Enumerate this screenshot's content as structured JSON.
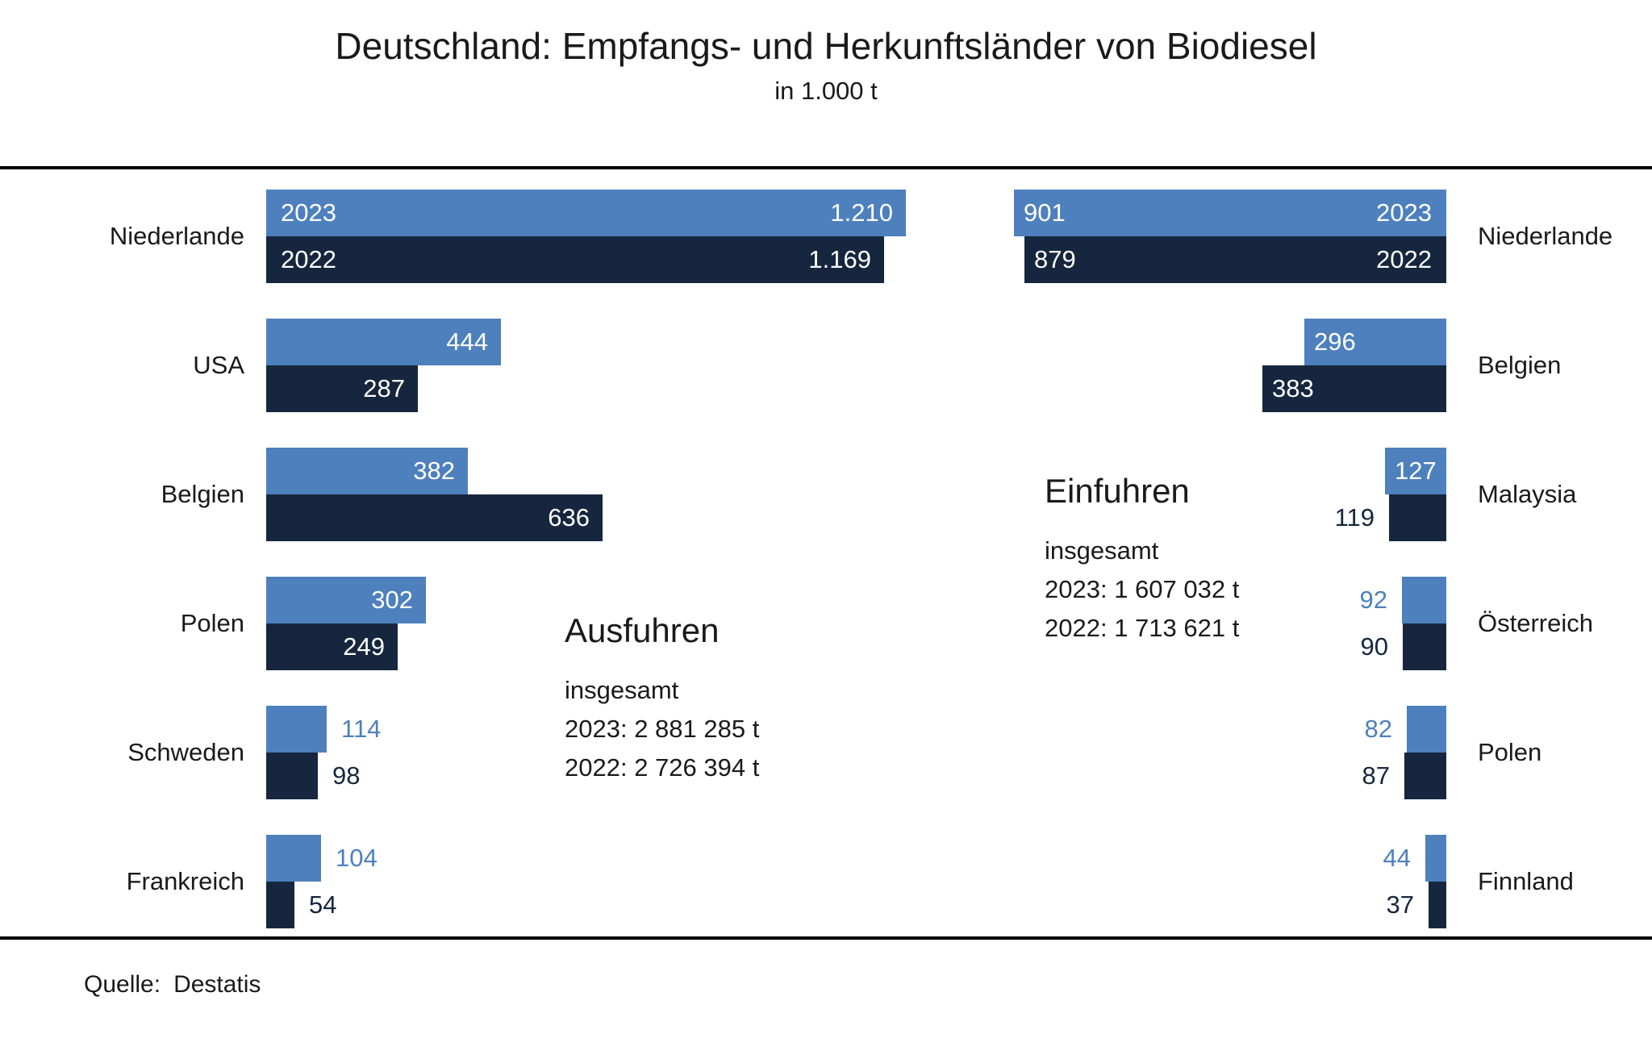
{
  "title": "Deutschland: Empfangs- und Herkunftsländer von Biodiesel",
  "subtitle": "in 1.000 t",
  "source": {
    "label": "Quelle:",
    "value": "Destatis"
  },
  "colors": {
    "bar_2023": "#4d80bd",
    "bar_2022": "#16263e",
    "text": "#1a1a1a",
    "divider": "#000000"
  },
  "chart_data": [
    {
      "type": "bar",
      "orientation": "horizontal, bars grow right",
      "name": "Ausfuhren",
      "unit": "1.000 t",
      "series_labels": [
        "2023",
        "2022"
      ],
      "summary": {
        "heading": "Ausfuhren",
        "line1": "insgesamt",
        "line2": "2023: 2 881 285 t",
        "line3": "2022: 2 726 394 t"
      },
      "rows": [
        {
          "category": "Niederlande",
          "y2023": 1210,
          "y2022": 1169,
          "display_2023": "1.210",
          "display_2022": "1.169"
        },
        {
          "category": "USA",
          "y2023": 444,
          "y2022": 287,
          "display_2023": "444",
          "display_2022": "287"
        },
        {
          "category": "Belgien",
          "y2023": 382,
          "y2022": 636,
          "display_2023": "382",
          "display_2022": "636"
        },
        {
          "category": "Polen",
          "y2023": 302,
          "y2022": 249,
          "display_2023": "302",
          "display_2022": "249"
        },
        {
          "category": "Schweden",
          "y2023": 114,
          "y2022": 98,
          "display_2023": "114",
          "display_2022": "98"
        },
        {
          "category": "Frankreich",
          "y2023": 104,
          "y2022": 54,
          "display_2023": "104",
          "display_2022": "54"
        }
      ]
    },
    {
      "type": "bar",
      "orientation": "horizontal, bars grow left (right-aligned)",
      "name": "Einfuhren",
      "unit": "1.000 t",
      "series_labels": [
        "2023",
        "2022"
      ],
      "summary": {
        "heading": "Einfuhren",
        "line1": "insgesamt",
        "line2": "2023: 1 607 032 t",
        "line3": "2022: 1 713 621 t"
      },
      "rows": [
        {
          "category": "Niederlande",
          "y2023": 901,
          "y2022": 879,
          "display_2023": "901",
          "display_2022": "879"
        },
        {
          "category": "Belgien",
          "y2023": 296,
          "y2022": 383,
          "display_2023": "296",
          "display_2022": "383"
        },
        {
          "category": "Malaysia",
          "y2023": 127,
          "y2022": 119,
          "display_2023": "127",
          "display_2022": "119"
        },
        {
          "category": "Österreich",
          "y2023": 92,
          "y2022": 90,
          "display_2023": "92",
          "display_2022": "90"
        },
        {
          "category": "Polen",
          "y2023": 82,
          "y2022": 87,
          "display_2023": "82",
          "display_2022": "87"
        },
        {
          "category": "Finnland",
          "y2023": 44,
          "y2022": 37,
          "display_2023": "44",
          "display_2022": "37"
        }
      ]
    }
  ]
}
